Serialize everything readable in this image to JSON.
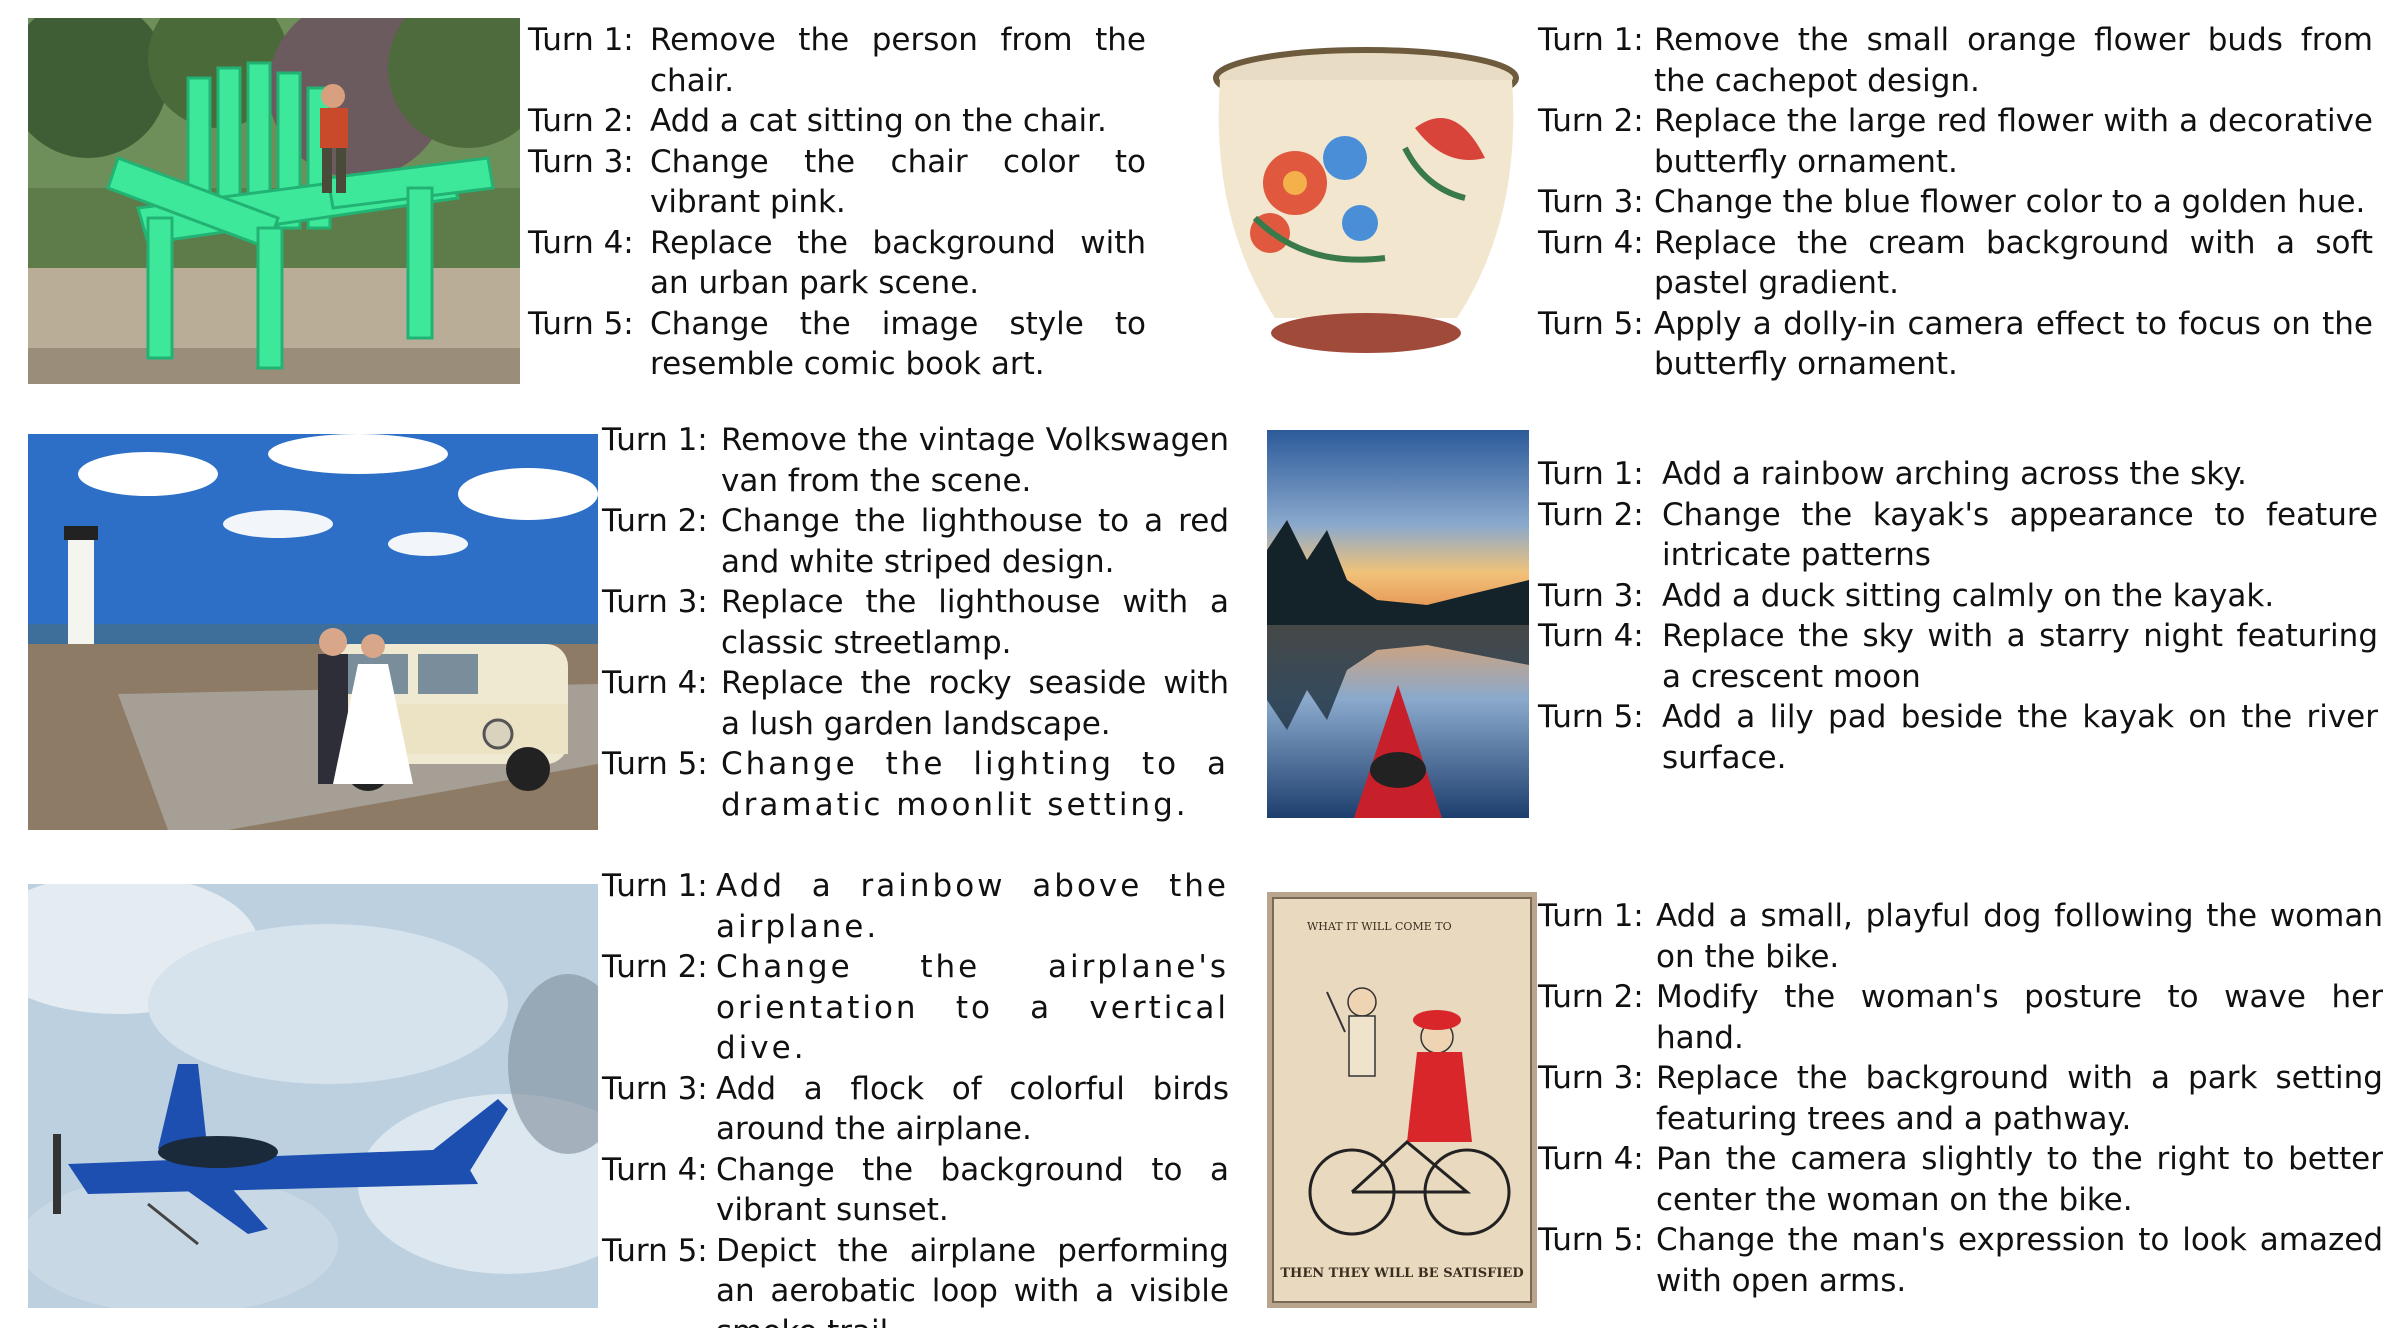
{
  "panels": [
    {
      "image": "adirondack-chair-photo-icon",
      "turns": [
        {
          "label": "Turn 1:",
          "text": "Remove the person from the chair."
        },
        {
          "label": "Turn 2:",
          "text": "Add a cat sitting on the chair."
        },
        {
          "label": "Turn 3:",
          "text": "Change the chair color to vibrant pink."
        },
        {
          "label": "Turn 4:",
          "text": "Replace the background with an urban park scene."
        },
        {
          "label": "Turn 5:",
          "text": "Change the image style to resemble comic book art."
        }
      ]
    },
    {
      "image": "cachepot-photo-icon",
      "turns": [
        {
          "label": "Turn 1:",
          "text": "Remove the small orange flower buds from the cachepot design."
        },
        {
          "label": "Turn 2:",
          "text": "Replace the large red flower with a decorative butterfly ornament."
        },
        {
          "label": "Turn 3:",
          "text": "Change the blue flower color to a golden hue."
        },
        {
          "label": "Turn 4:",
          "text": "Replace the cream background with a soft pastel gradient."
        },
        {
          "label": "Turn 5:",
          "text": "Apply a dolly-in camera effect to focus on the butterfly ornament."
        }
      ]
    },
    {
      "image": "wedding-van-lighthouse-photo-icon",
      "turns": [
        {
          "label": "Turn 1:",
          "text": "Remove the vintage Volkswagen van from the scene."
        },
        {
          "label": "Turn 2:",
          "text": "Change the lighthouse to a red and white striped design."
        },
        {
          "label": "Turn 3:",
          "text": "Replace the lighthouse with a classic streetlamp."
        },
        {
          "label": "Turn 4:",
          "text": "Replace the rocky seaside with a lush garden landscape."
        },
        {
          "label": "Turn 5:",
          "text": "Change the lighting to a dramatic moonlit setting."
        }
      ]
    },
    {
      "image": "kayak-river-photo-icon",
      "turns": [
        {
          "label": "Turn 1:",
          "text": "Add a rainbow arching across the sky."
        },
        {
          "label": "Turn 2:",
          "text": "Change the kayak's appearance to feature intricate patterns"
        },
        {
          "label": "Turn 3:",
          "text": "Add a duck sitting calmly on the kayak."
        },
        {
          "label": "Turn 4:",
          "text": "Replace the sky with a starry night featuring a crescent moon"
        },
        {
          "label": "Turn 5:",
          "text": "Add a lily pad beside the kayak on the river surface."
        }
      ]
    },
    {
      "image": "aerobatic-airplane-photo-icon",
      "turns": [
        {
          "label": "Turn 1:",
          "text": "Add a rainbow above the airplane."
        },
        {
          "label": "Turn 2:",
          "text": "Change the airplane's orientation to a vertical dive."
        },
        {
          "label": "Turn 3:",
          "text": "Add a flock of colorful birds around the airplane."
        },
        {
          "label": "Turn 4:",
          "text": "Change the background to a vibrant sunset."
        },
        {
          "label": "Turn 5:",
          "text": "Depict the airplane performing an aerobatic loop with a visible smoke trail."
        }
      ]
    },
    {
      "image": "vintage-postcard-bicycle-icon",
      "postcard_top": "WHAT IT WILL COME TO",
      "postcard_bottom": "THEN THEY WILL BE SATISFIED",
      "turns": [
        {
          "label": "Turn 1:",
          "text": "Add a small, playful dog following the woman on the bike."
        },
        {
          "label": "Turn 2:",
          "text": "Modify the woman's posture to wave her hand."
        },
        {
          "label": "Turn 3:",
          "text": "Replace the background with a park setting featuring trees and a pathway."
        },
        {
          "label": "Turn 4:",
          "text": "Pan the camera slightly to the right to better center the woman on the bike."
        },
        {
          "label": "Turn 5:",
          "text": "Change the man's expression to look amazed with open arms."
        }
      ]
    }
  ]
}
